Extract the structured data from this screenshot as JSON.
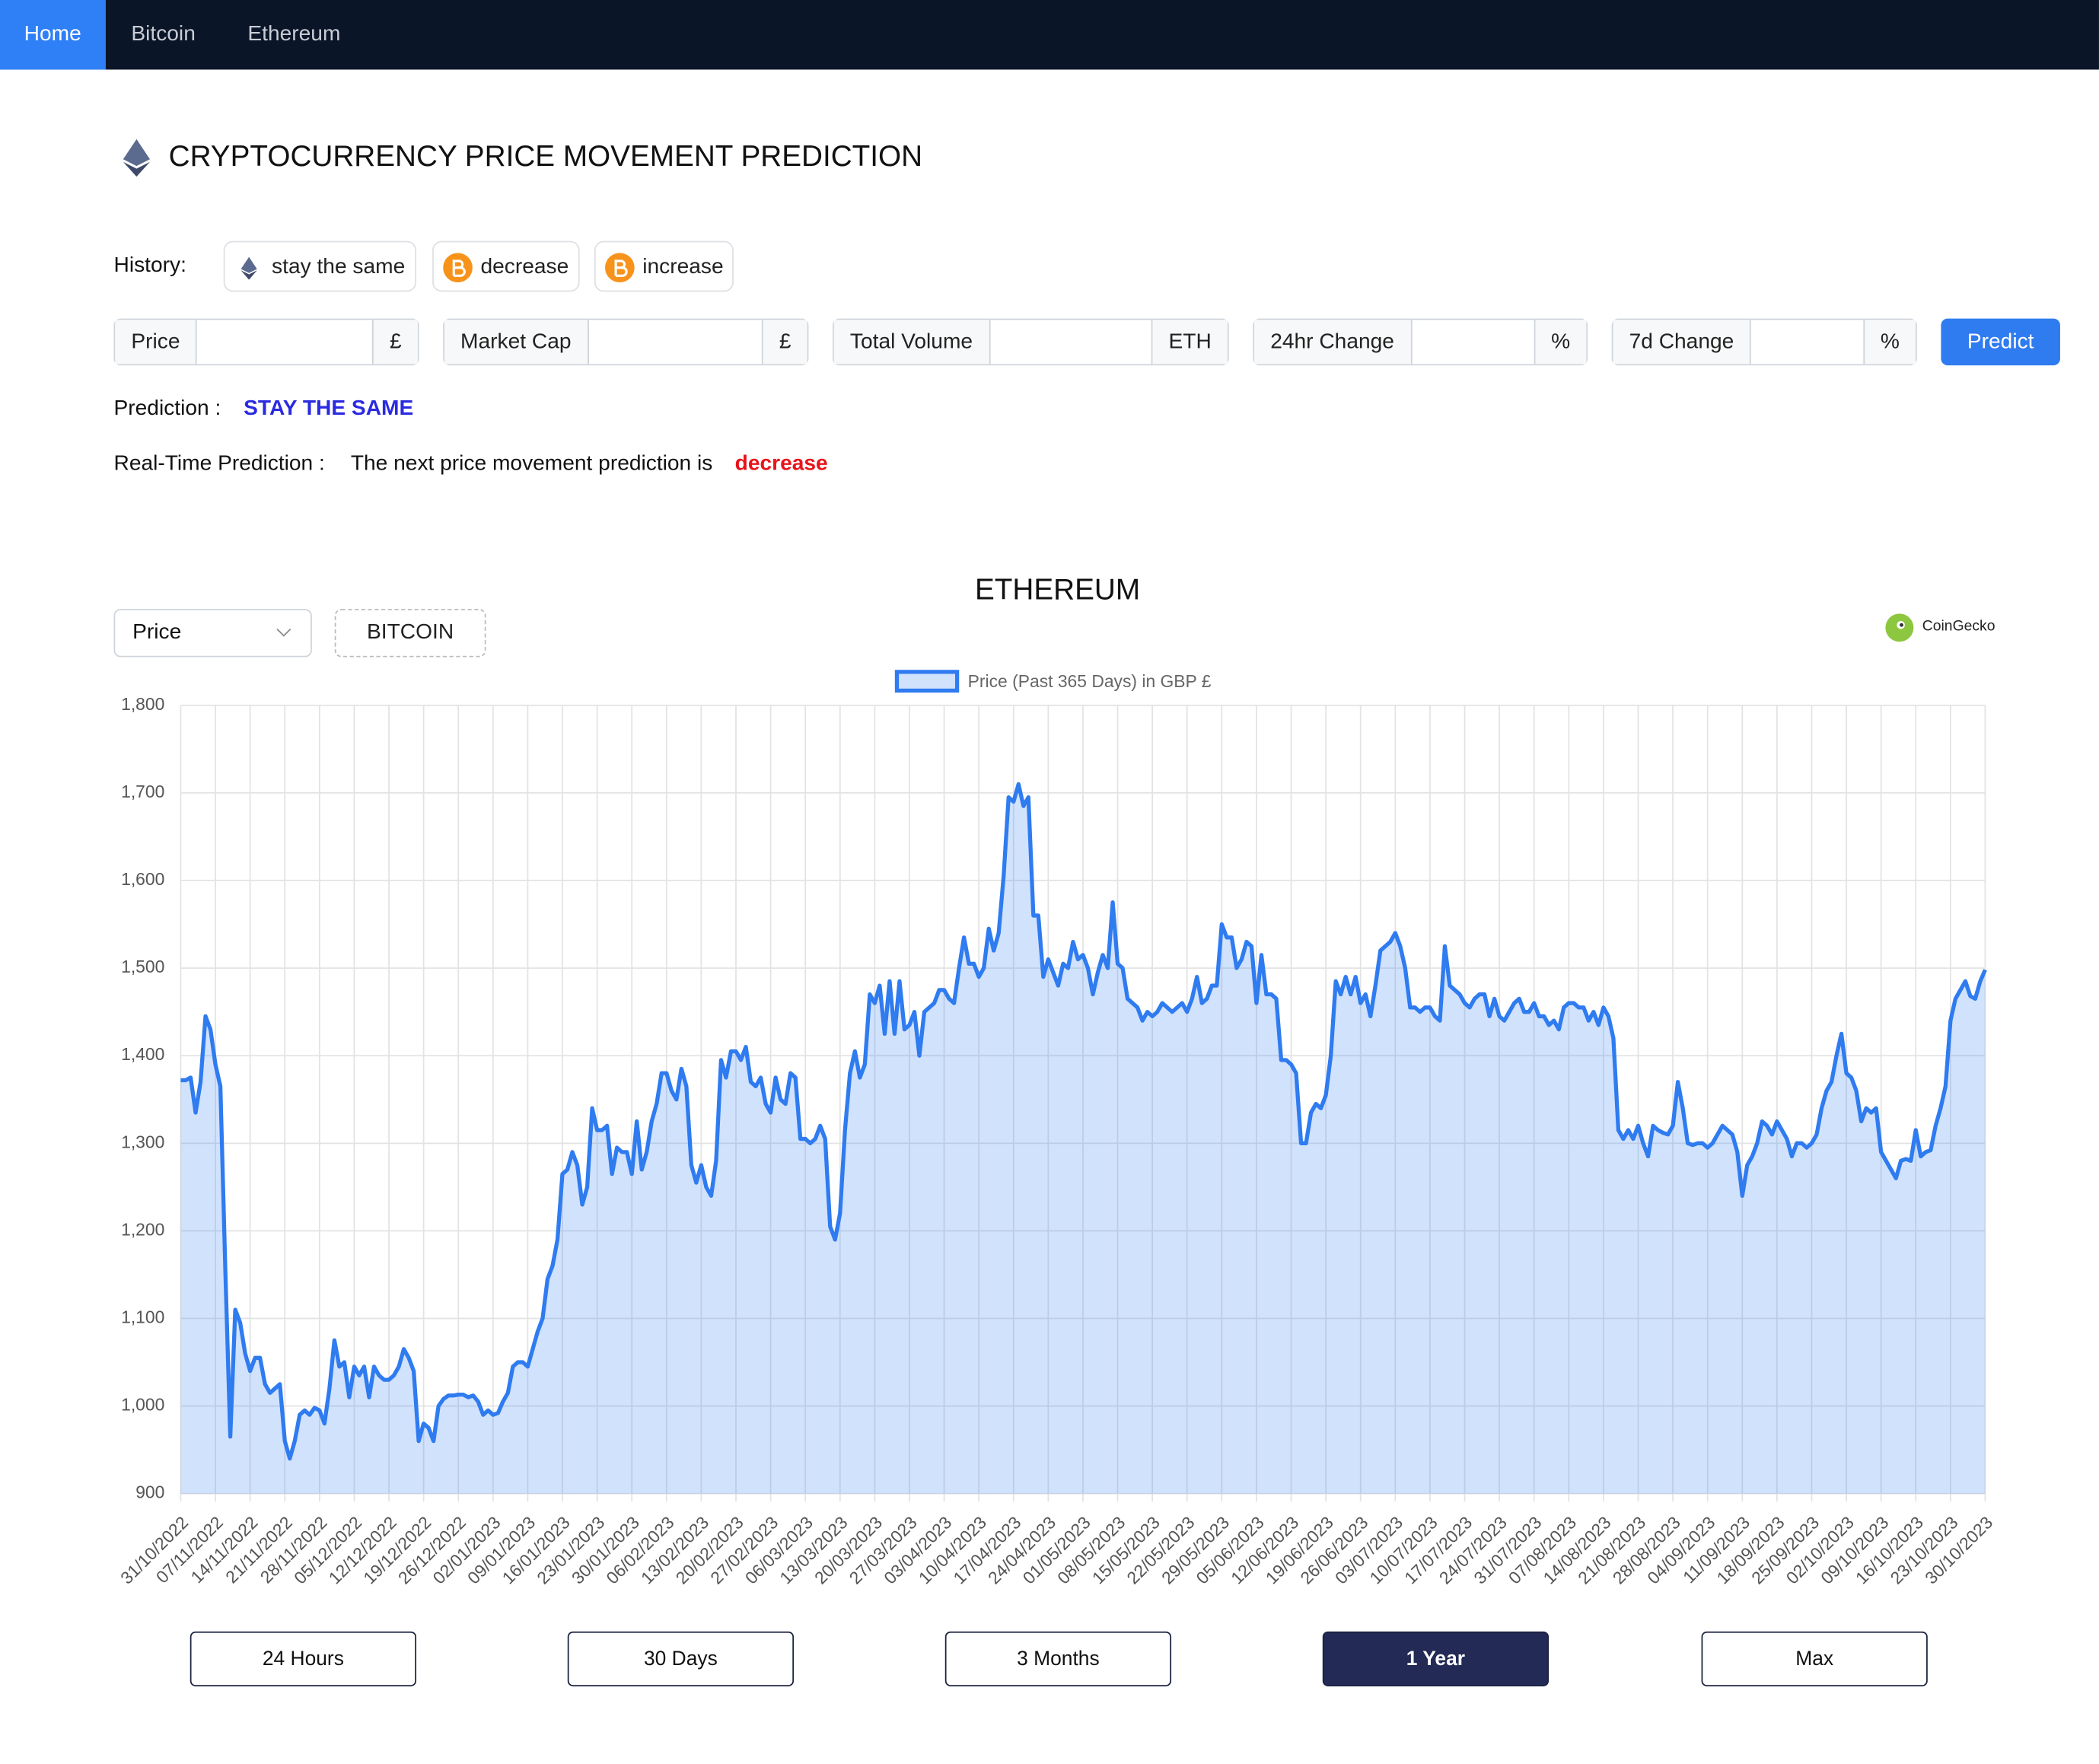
{
  "nav": [
    "Home",
    "Bitcoin",
    "Ethereum"
  ],
  "header": {
    "title": "CRYPTOCURRENCY PRICE MOVEMENT PREDICTION"
  },
  "history": {
    "label": "History:",
    "items": [
      "stay the same",
      "decrease",
      "increase"
    ]
  },
  "form": {
    "fields": [
      {
        "label": "Price",
        "unit": "£"
      },
      {
        "label": "Market Cap",
        "unit": "£"
      },
      {
        "label": "Total Volume",
        "unit": "ETH"
      },
      {
        "label": "24hr Change",
        "unit": "%"
      },
      {
        "label": "7d Change",
        "unit": "%"
      }
    ],
    "button": "Predict"
  },
  "prediction": {
    "label": "Prediction :",
    "value": "STAY THE SAME"
  },
  "realtime": {
    "label": "Real-Time Prediction :",
    "text": "The next price movement prediction is",
    "value": "decrease"
  },
  "chart_panel": {
    "select": "Price",
    "toggle": "BITCOIN",
    "brand": "CoinGecko",
    "ranges": [
      "24 Hours",
      "30 Days",
      "3 Months",
      "1 Year",
      "Max"
    ]
  },
  "chart_data": {
    "type": "line",
    "title": "ETHEREUM",
    "fill": true,
    "grid": true,
    "legend": "top",
    "ylim": [
      900,
      1800
    ],
    "yticks": [
      900,
      {
        "value": 1000,
        "label": "1,000"
      },
      {
        "value": 1100,
        "label": "1,100"
      },
      {
        "value": 1200,
        "label": "1,200"
      },
      {
        "value": 1300,
        "label": "1,300"
      },
      {
        "value": 1400,
        "label": "1,400"
      },
      {
        "value": 1500,
        "label": "1,500"
      },
      {
        "value": 1600,
        "label": "1,600"
      },
      {
        "value": 1700,
        "label": "1,700"
      },
      {
        "value": 1800,
        "label": "1,800"
      }
    ],
    "categories": [
      "31/10/2022",
      null,
      null,
      null,
      null,
      null,
      null,
      "07/11/2022",
      null,
      null,
      null,
      null,
      null,
      null,
      "14/11/2022",
      null,
      null,
      null,
      null,
      null,
      null,
      "21/11/2022",
      null,
      null,
      null,
      null,
      null,
      null,
      "28/11/2022",
      null,
      null,
      null,
      null,
      null,
      null,
      "05/12/2022",
      null,
      null,
      null,
      null,
      null,
      null,
      "12/12/2022",
      null,
      null,
      null,
      null,
      null,
      null,
      "19/12/2022",
      null,
      null,
      null,
      null,
      null,
      null,
      "26/12/2022",
      null,
      null,
      null,
      null,
      null,
      null,
      "02/01/2023",
      null,
      null,
      null,
      null,
      null,
      null,
      "09/01/2023",
      null,
      null,
      null,
      null,
      null,
      null,
      "16/01/2023",
      null,
      null,
      null,
      null,
      null,
      null,
      "23/01/2023",
      null,
      null,
      null,
      null,
      null,
      null,
      "30/01/2023",
      null,
      null,
      null,
      null,
      null,
      null,
      "06/02/2023",
      null,
      null,
      null,
      null,
      null,
      null,
      "13/02/2023",
      null,
      null,
      null,
      null,
      null,
      null,
      "20/02/2023",
      null,
      null,
      null,
      null,
      null,
      null,
      "27/02/2023",
      null,
      null,
      null,
      null,
      null,
      null,
      "06/03/2023",
      null,
      null,
      null,
      null,
      null,
      null,
      "13/03/2023",
      null,
      null,
      null,
      null,
      null,
      null,
      "20/03/2023",
      null,
      null,
      null,
      null,
      null,
      null,
      "27/03/2023",
      null,
      null,
      null,
      null,
      null,
      null,
      "03/04/2023",
      null,
      null,
      null,
      null,
      null,
      null,
      "10/04/2023",
      null,
      null,
      null,
      null,
      null,
      null,
      "17/04/2023",
      null,
      null,
      null,
      null,
      null,
      null,
      "24/04/2023",
      null,
      null,
      null,
      null,
      null,
      null,
      "01/05/2023",
      null,
      null,
      null,
      null,
      null,
      null,
      "08/05/2023",
      null,
      null,
      null,
      null,
      null,
      null,
      "15/05/2023",
      null,
      null,
      null,
      null,
      null,
      null,
      "22/05/2023",
      null,
      null,
      null,
      null,
      null,
      null,
      "29/05/2023",
      null,
      null,
      null,
      null,
      null,
      null,
      "05/06/2023",
      null,
      null,
      null,
      null,
      null,
      null,
      "12/06/2023",
      null,
      null,
      null,
      null,
      null,
      null,
      "19/06/2023",
      null,
      null,
      null,
      null,
      null,
      null,
      "26/06/2023",
      null,
      null,
      null,
      null,
      null,
      null,
      "03/07/2023",
      null,
      null,
      null,
      null,
      null,
      null,
      "10/07/2023",
      null,
      null,
      null,
      null,
      null,
      null,
      "17/07/2023",
      null,
      null,
      null,
      null,
      null,
      null,
      "24/07/2023",
      null,
      null,
      null,
      null,
      null,
      null,
      "31/07/2023",
      null,
      null,
      null,
      null,
      null,
      null,
      "07/08/2023",
      null,
      null,
      null,
      null,
      null,
      null,
      "14/08/2023",
      null,
      null,
      null,
      null,
      null,
      null,
      "21/08/2023",
      null,
      null,
      null,
      null,
      null,
      null,
      "28/08/2023",
      null,
      null,
      null,
      null,
      null,
      null,
      "04/09/2023",
      null,
      null,
      null,
      null,
      null,
      null,
      "11/09/2023",
      null,
      null,
      null,
      null,
      null,
      null,
      "18/09/2023",
      null,
      null,
      null,
      null,
      null,
      null,
      "25/09/2023",
      null,
      null,
      null,
      null,
      null,
      null,
      "02/10/2023",
      null,
      null,
      null,
      null,
      null,
      null,
      "09/10/2023",
      null,
      null,
      null,
      null,
      null,
      null,
      "16/10/2023",
      null,
      null,
      null,
      null,
      null,
      null,
      "23/10/2023",
      null,
      null,
      null,
      null,
      null,
      null,
      "30/10/2023"
    ],
    "series": [
      {
        "name": "Price (Past 365 Days) in GBP £",
        "color": "#2f7bf0",
        "values": [
          1372,
          1372,
          1375,
          1335,
          1370,
          1445,
          1430,
          1390,
          1365,
          1155,
          965,
          1110,
          1095,
          1060,
          1040,
          1055,
          1055,
          1025,
          1015,
          1020,
          1025,
          960,
          940,
          960,
          990,
          995,
          990,
          998,
          995,
          980,
          1020,
          1075,
          1045,
          1050,
          1010,
          1045,
          1035,
          1045,
          1010,
          1045,
          1035,
          1030,
          1030,
          1035,
          1045,
          1065,
          1055,
          1040,
          960,
          980,
          975,
          960,
          1000,
          1008,
          1012,
          1012,
          1013,
          1013,
          1010,
          1012,
          1005,
          990,
          995,
          990,
          992,
          1005,
          1015,
          1045,
          1050,
          1050,
          1045,
          1065,
          1085,
          1100,
          1145,
          1160,
          1190,
          1265,
          1270,
          1290,
          1275,
          1230,
          1250,
          1340,
          1315,
          1315,
          1320,
          1265,
          1295,
          1290,
          1290,
          1265,
          1325,
          1270,
          1290,
          1325,
          1345,
          1380,
          1380,
          1360,
          1350,
          1385,
          1365,
          1275,
          1255,
          1275,
          1250,
          1240,
          1280,
          1395,
          1375,
          1405,
          1405,
          1395,
          1410,
          1370,
          1365,
          1375,
          1345,
          1335,
          1375,
          1350,
          1345,
          1380,
          1375,
          1305,
          1305,
          1300,
          1305,
          1320,
          1305,
          1205,
          1190,
          1220,
          1315,
          1380,
          1405,
          1375,
          1390,
          1470,
          1460,
          1480,
          1425,
          1485,
          1425,
          1485,
          1430,
          1435,
          1450,
          1400,
          1450,
          1455,
          1460,
          1475,
          1475,
          1465,
          1460,
          1500,
          1535,
          1505,
          1505,
          1490,
          1500,
          1545,
          1520,
          1540,
          1605,
          1695,
          1690,
          1710,
          1685,
          1695,
          1560,
          1560,
          1490,
          1510,
          1495,
          1480,
          1505,
          1500,
          1530,
          1510,
          1515,
          1500,
          1470,
          1495,
          1515,
          1500,
          1575,
          1505,
          1500,
          1465,
          1460,
          1455,
          1440,
          1450,
          1445,
          1450,
          1460,
          1455,
          1450,
          1455,
          1460,
          1450,
          1465,
          1490,
          1460,
          1465,
          1480,
          1480,
          1550,
          1535,
          1535,
          1500,
          1510,
          1530,
          1525,
          1460,
          1515,
          1470,
          1470,
          1465,
          1395,
          1395,
          1390,
          1380,
          1300,
          1300,
          1335,
          1345,
          1340,
          1355,
          1400,
          1485,
          1470,
          1490,
          1470,
          1490,
          1460,
          1470,
          1445,
          1480,
          1520,
          1525,
          1530,
          1540,
          1525,
          1500,
          1455,
          1455,
          1450,
          1455,
          1455,
          1445,
          1440,
          1525,
          1480,
          1475,
          1470,
          1460,
          1455,
          1465,
          1470,
          1470,
          1445,
          1465,
          1445,
          1440,
          1450,
          1460,
          1465,
          1450,
          1450,
          1460,
          1445,
          1445,
          1435,
          1440,
          1430,
          1455,
          1460,
          1460,
          1455,
          1455,
          1440,
          1450,
          1435,
          1455,
          1445,
          1420,
          1315,
          1305,
          1315,
          1305,
          1320,
          1300,
          1285,
          1320,
          1315,
          1312,
          1310,
          1320,
          1370,
          1340,
          1300,
          1298,
          1300,
          1300,
          1295,
          1300,
          1310,
          1320,
          1315,
          1310,
          1290,
          1240,
          1275,
          1285,
          1300,
          1325,
          1320,
          1310,
          1325,
          1315,
          1305,
          1285,
          1300,
          1300,
          1295,
          1300,
          1310,
          1340,
          1360,
          1370,
          1400,
          1425,
          1380,
          1375,
          1360,
          1325,
          1340,
          1335,
          1340,
          1290,
          1280,
          1270,
          1260,
          1280,
          1282,
          1280,
          1315,
          1285,
          1290,
          1292,
          1320,
          1340,
          1365,
          1440,
          1465,
          1475,
          1485,
          1468,
          1465,
          1485,
          1498
        ]
      }
    ]
  }
}
